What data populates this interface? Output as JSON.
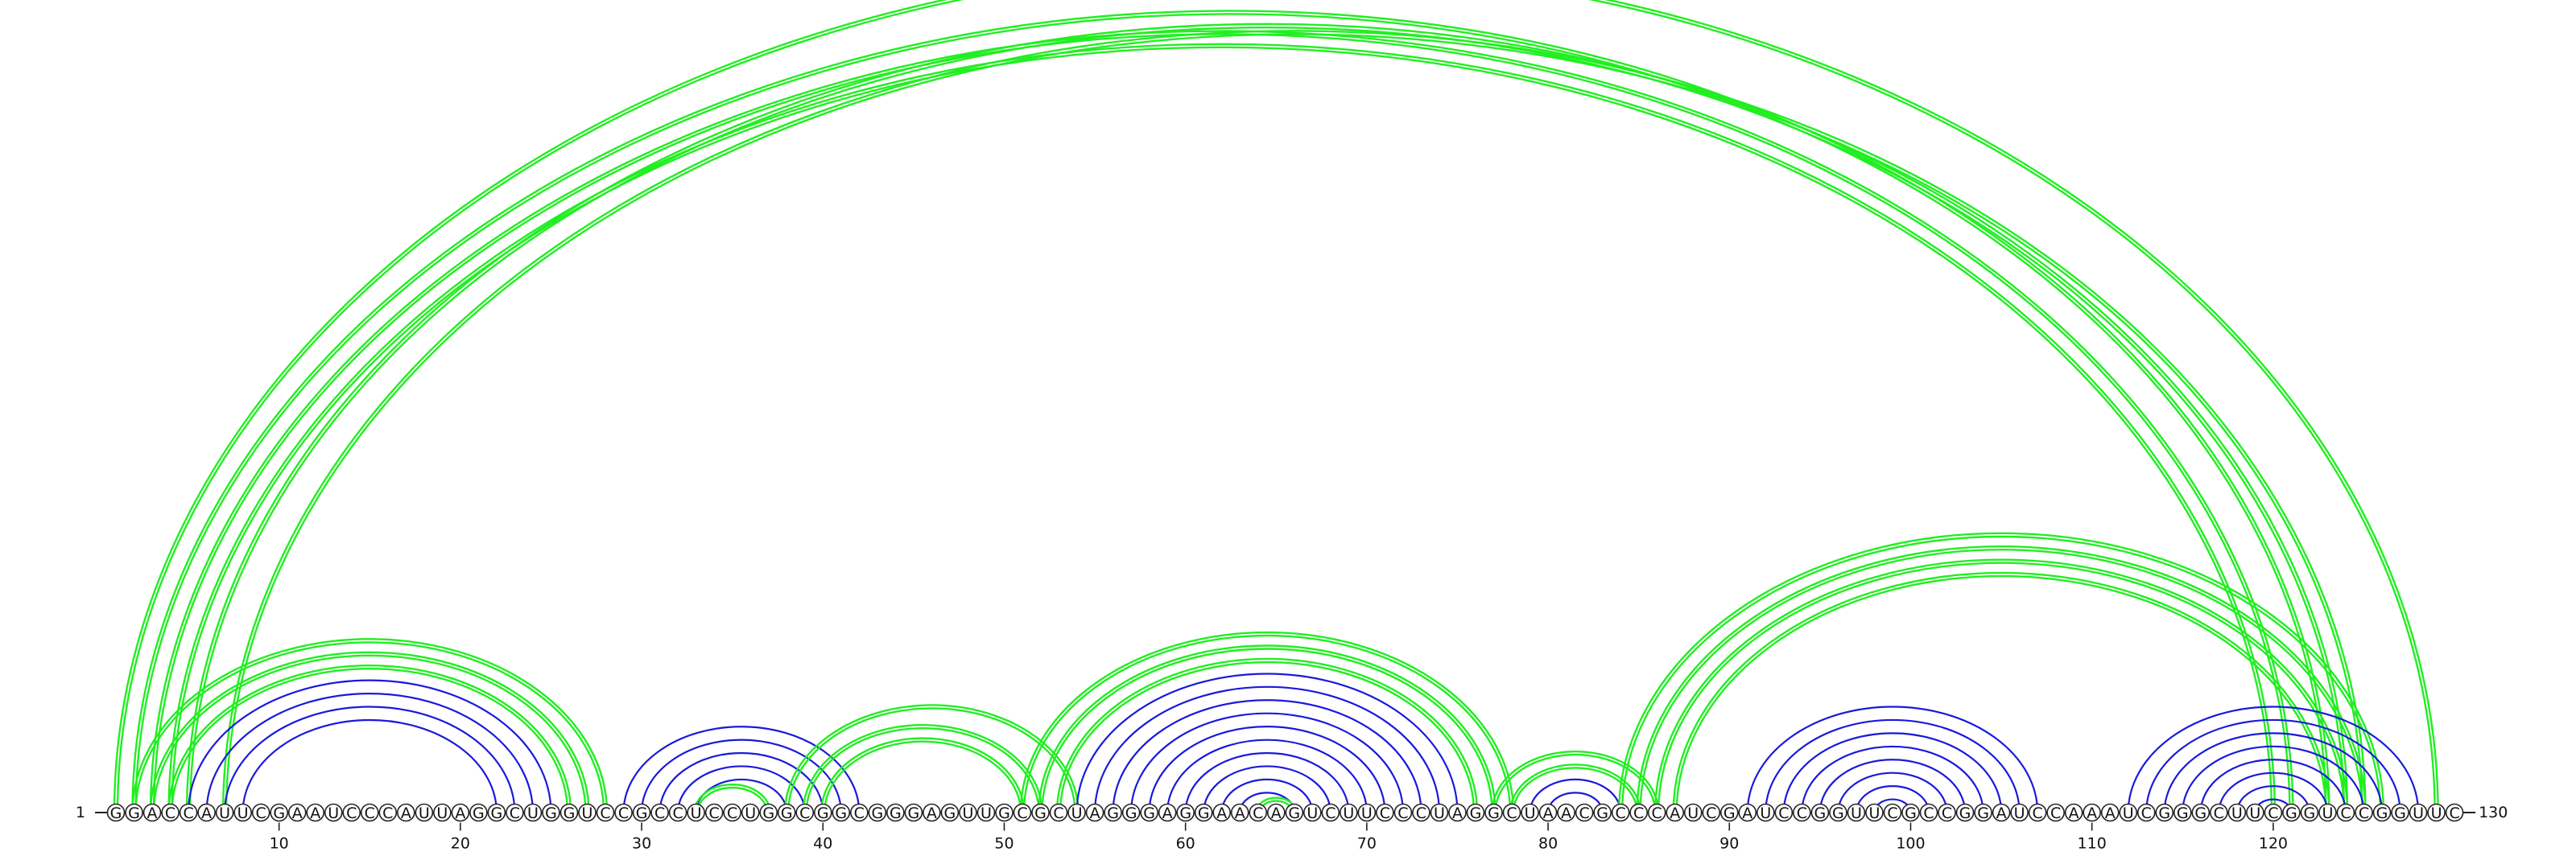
{
  "sequence": "GGACCAUUCGAAUCCCAUUAGGCUGGUCCGCCUCCUGGCGGCGGGAGUUGCGCUAGGGAGGAACAGUCUUCCCUAGGCUAACGCCCAUCGAUCCGGUUCGCCGGAUCCAAAUCGGGCUUCGGUCCGGUUC",
  "start_label": "1",
  "end_label": "130",
  "tick_labels": [
    "10",
    "20",
    "30",
    "40",
    "50",
    "60",
    "70",
    "80",
    "90",
    "100",
    "110",
    "120"
  ],
  "colors": {
    "green": "#22ee22",
    "blue": "#1a1adb",
    "backbone": "#222222"
  },
  "arc_sets": [
    {
      "color": "green",
      "count": 2,
      "pairs": [
        [
          1,
          129
        ],
        [
          3,
          121
        ],
        [
          4,
          120
        ]
      ]
    },
    {
      "color": "green",
      "count": 2,
      "pairs": [
        [
          2,
          123
        ],
        [
          5,
          124
        ],
        [
          7,
          125
        ]
      ]
    },
    {
      "color": "green",
      "count": 2,
      "pairs": [
        [
          2,
          28
        ],
        [
          3,
          27
        ],
        [
          4,
          26
        ]
      ]
    },
    {
      "color": "blue",
      "count": 1,
      "pairs": [
        [
          5,
          25
        ],
        [
          6,
          24
        ],
        [
          7,
          23
        ],
        [
          8,
          22
        ]
      ]
    },
    {
      "color": "blue",
      "count": 1,
      "pairs": [
        [
          29,
          42
        ],
        [
          30,
          41
        ],
        [
          31,
          40
        ],
        [
          32,
          39
        ],
        [
          33,
          38
        ]
      ]
    },
    {
      "color": "green",
      "count": 2,
      "pairs": [
        [
          33,
          37
        ]
      ]
    },
    {
      "color": "green",
      "count": 2,
      "pairs": [
        [
          38,
          54
        ],
        [
          39,
          52
        ],
        [
          40,
          51
        ]
      ]
    },
    {
      "color": "green",
      "count": 2,
      "pairs": [
        [
          51,
          78
        ],
        [
          52,
          77
        ],
        [
          53,
          76
        ]
      ]
    },
    {
      "color": "blue",
      "count": 1,
      "pairs": [
        [
          54,
          75
        ],
        [
          55,
          74
        ],
        [
          56,
          73
        ],
        [
          57,
          72
        ],
        [
          58,
          71
        ],
        [
          59,
          70
        ],
        [
          60,
          69
        ],
        [
          61,
          68
        ],
        [
          62,
          67
        ],
        [
          63,
          66
        ]
      ]
    },
    {
      "color": "green",
      "count": 2,
      "pairs": [
        [
          64,
          66
        ]
      ]
    },
    {
      "color": "green",
      "count": 2,
      "pairs": [
        [
          77,
          86
        ],
        [
          78,
          85
        ]
      ]
    },
    {
      "color": "blue",
      "count": 1,
      "pairs": [
        [
          79,
          84
        ],
        [
          80,
          83
        ]
      ]
    },
    {
      "color": "green",
      "count": 2,
      "pairs": [
        [
          84,
          126
        ],
        [
          85,
          125
        ],
        [
          86,
          124
        ],
        [
          87,
          123
        ]
      ]
    },
    {
      "color": "blue",
      "count": 1,
      "pairs": [
        [
          91,
          107
        ],
        [
          92,
          106
        ],
        [
          93,
          105
        ],
        [
          94,
          104
        ],
        [
          95,
          103
        ],
        [
          96,
          102
        ],
        [
          97,
          101
        ],
        [
          98,
          100
        ]
      ]
    },
    {
      "color": "blue",
      "count": 1,
      "pairs": [
        [
          112,
          128
        ],
        [
          113,
          127
        ],
        [
          114,
          126
        ],
        [
          115,
          125
        ],
        [
          116,
          124
        ],
        [
          117,
          123
        ],
        [
          118,
          122
        ],
        [
          119,
          121
        ]
      ]
    }
  ]
}
